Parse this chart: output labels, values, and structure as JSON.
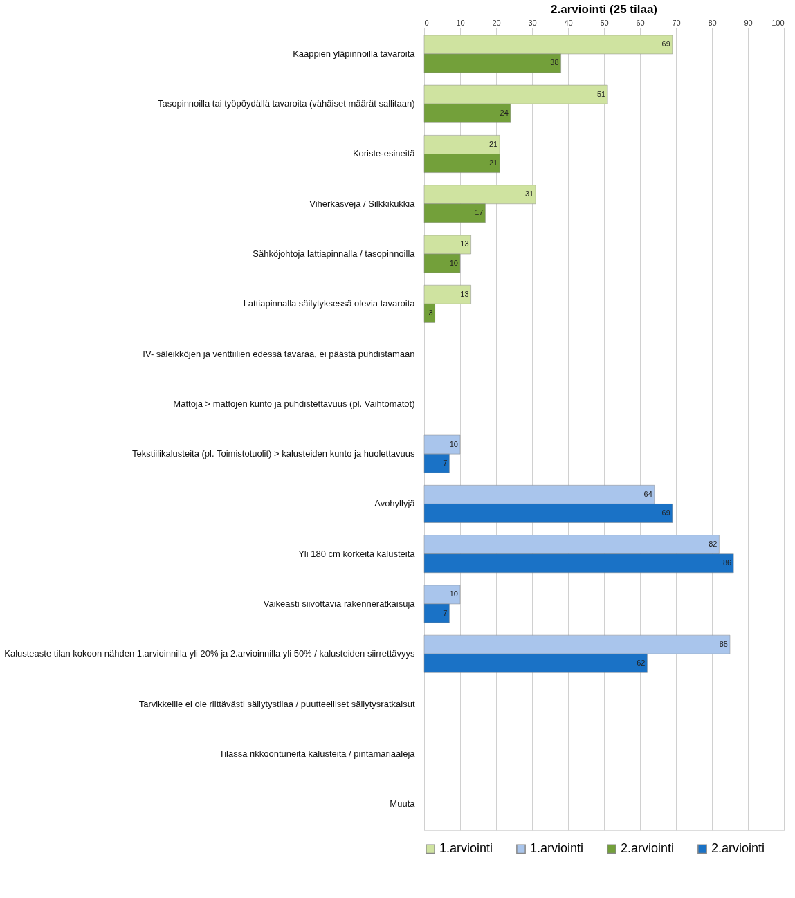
{
  "chart_data": {
    "type": "bar",
    "orientation": "horizontal",
    "title": "2.arviointi (25 tilaa)",
    "categories": [
      "Kaappien yläpinnoilla tavaroita",
      "Tasopinnoilla tai työpöydällä tavaroita (vähäiset määrät sallitaan)",
      "Koriste-esineitä",
      "Viherkasveja / Silkkikukkia",
      "Sähköjohtoja lattiapinnalla / tasopinnoilla",
      "Lattiapinnalla säilytyksessä olevia tavaroita",
      "IV- säleikköjen ja venttiilien edessä tavaraa, ei päästä puhdistamaan",
      "Mattoja > mattojen kunto ja puhdistettavuus (pl. Vaihtomatot)",
      "Tekstiilikalusteita (pl. Toimistotuolit) > kalusteiden kunto ja huolettavuus",
      "Avohyllyjä",
      "Yli 180 cm korkeita kalusteita",
      "Vaikeasti siivottavia rakenneratkaisuja",
      "Kalusteaste tilan kokoon nähden 1.arvioinnilla yli 20% ja 2.arvioinnilla yli 50% / kalusteiden siirrettävyys",
      "Tarvikkeille ei ole riittävästi säilytystilaa / puutteelliset säilytysratkaisut",
      "Tilassa rikkoontuneita kalusteita / pintamariaaleja",
      "Muuta"
    ],
    "series": [
      {
        "name": "1.arviointi",
        "color": "#cfe3a0",
        "values": [
          69,
          51,
          21,
          31,
          13,
          13,
          null,
          null,
          null,
          null,
          null,
          null,
          null,
          null,
          null,
          null
        ]
      },
      {
        "name": "1.arviointi",
        "color": "#a9c5ec",
        "values": [
          null,
          null,
          null,
          null,
          null,
          null,
          null,
          null,
          10,
          64,
          82,
          10,
          85,
          null,
          null,
          null
        ]
      },
      {
        "name": "2.arviointi",
        "color": "#73a03a",
        "values": [
          38,
          24,
          21,
          17,
          10,
          3,
          null,
          null,
          null,
          null,
          null,
          null,
          null,
          null,
          null,
          null
        ]
      },
      {
        "name": "2.arviointi",
        "color": "#1a72c6",
        "values": [
          null,
          null,
          null,
          null,
          null,
          null,
          null,
          null,
          7,
          69,
          86,
          7,
          62,
          null,
          null,
          null
        ]
      }
    ],
    "xlim": [
      0,
      100
    ],
    "xticks": [
      0,
      10,
      20,
      30,
      40,
      50,
      60,
      70,
      80,
      90,
      100
    ],
    "grid": "x",
    "legend": "bottom",
    "data_labels": true
  }
}
